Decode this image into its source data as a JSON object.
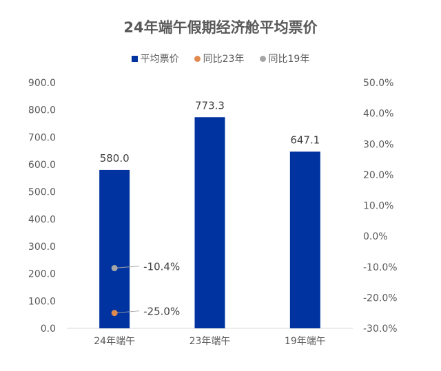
{
  "chart_data": {
    "type": "bar",
    "title": "24年端午假期经济舱平均票价",
    "categories": [
      "24年端午",
      "23年端午",
      "19年端午"
    ],
    "series": [
      {
        "name": "平均票价",
        "axis": "left",
        "values": [
          580.0,
          773.3,
          647.1
        ],
        "labels": [
          "580.0",
          "773.3",
          "647.1"
        ],
        "color": "#0033A0"
      },
      {
        "name": "同比23年",
        "axis": "right",
        "type": "scatter",
        "values": [
          -0.25,
          null,
          null
        ],
        "labels": [
          "-25.0%"
        ],
        "color": "#E08A50"
      },
      {
        "name": "同比19年",
        "axis": "right",
        "type": "scatter",
        "values": [
          -0.104,
          null,
          null
        ],
        "labels": [
          "-10.4%"
        ],
        "color": "#A6A6A6"
      }
    ],
    "ylim_left": [
      0,
      900
    ],
    "yticks_left": [
      "0.0",
      "100.0",
      "200.0",
      "300.0",
      "400.0",
      "500.0",
      "600.0",
      "700.0",
      "800.0",
      "900.0"
    ],
    "ylim_right": [
      -0.3,
      0.5
    ],
    "yticks_right": [
      "-30.0%",
      "-20.0%",
      "-10.0%",
      "0.0%",
      "10.0%",
      "20.0%",
      "30.0%",
      "40.0%",
      "50.0%"
    ],
    "legend_position": "top",
    "grid": false
  }
}
